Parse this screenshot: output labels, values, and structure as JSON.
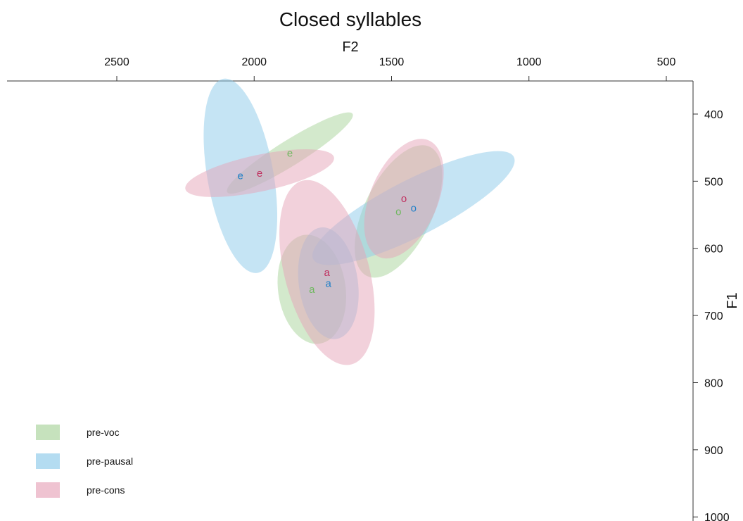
{
  "chart_data": {
    "type": "scatter",
    "title": "Closed syllables",
    "xlabel": "F2",
    "ylabel": "F1",
    "x_axis_position": "top",
    "y_axis_position": "right",
    "x_reversed": true,
    "y_reversed": true,
    "xlim": [
      2900,
      400
    ],
    "ylim": [
      350,
      1000
    ],
    "xticks": [
      2500,
      2000,
      1500,
      1000,
      500
    ],
    "yticks": [
      400,
      500,
      600,
      700,
      800,
      900,
      1000
    ],
    "grid": false,
    "legend_position": "bottom-left",
    "series": [
      {
        "name": "pre-voc",
        "color": "#6fb85f",
        "fill": "#a7d39a",
        "points": [
          {
            "label": "e",
            "x": 1870,
            "y": 458,
            "rx": 105,
            "ry": 18,
            "angle": -32
          },
          {
            "label": "a",
            "x": 1790,
            "y": 661,
            "rx": 48,
            "ry": 78,
            "angle": -8
          },
          {
            "label": "o",
            "x": 1475,
            "y": 545,
            "rx": 102,
            "ry": 48,
            "angle": -64
          }
        ]
      },
      {
        "name": "pre-pausal",
        "color": "#1f7fc8",
        "fill": "#8cc9ea",
        "points": [
          {
            "label": "e",
            "x": 2050,
            "y": 492,
            "rx": 140,
            "ry": 47,
            "angle": 80
          },
          {
            "label": "a",
            "x": 1730,
            "y": 652,
            "rx": 42,
            "ry": 80,
            "angle": -8
          },
          {
            "label": "o",
            "x": 1420,
            "y": 540,
            "rx": 160,
            "ry": 40,
            "angle": -27
          }
        ]
      },
      {
        "name": "pre-cons",
        "color": "#c0305f",
        "fill": "#e6a3b8",
        "points": [
          {
            "label": "e",
            "x": 1980,
            "y": 488,
            "rx": 108,
            "ry": 26,
            "angle": -12
          },
          {
            "label": "a",
            "x": 1735,
            "y": 636,
            "rx": 135,
            "ry": 60,
            "angle": 75
          },
          {
            "label": "o",
            "x": 1455,
            "y": 526,
            "rx": 90,
            "ry": 48,
            "angle": -67
          }
        ]
      }
    ]
  }
}
